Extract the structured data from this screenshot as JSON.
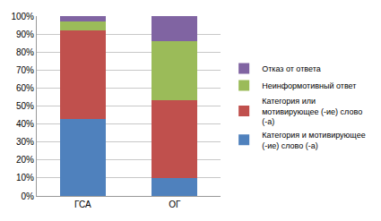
{
  "chart_data": {
    "type": "bar",
    "stacked": true,
    "grid": true,
    "legend": "right",
    "categories": [
      "ГСА",
      "ОГ"
    ],
    "series": [
      {
        "name": "Категория и мотивирующее (-ие) слово (-а)",
        "color": "#4f81bd",
        "values": [
          43,
          10
        ]
      },
      {
        "name": "Категория или мотивирующее (-ие) слово (-а)",
        "color": "#c0504d",
        "values": [
          49,
          43
        ]
      },
      {
        "name": "Неинформотивный ответ",
        "color": "#9bbb59",
        "values": [
          5,
          33
        ]
      },
      {
        "name": "Отказ от ответа",
        "color": "#8064a2",
        "values": [
          3,
          14
        ]
      }
    ],
    "ylim": [
      0,
      100
    ],
    "yticks": [
      {
        "value": 0,
        "label": "0%"
      },
      {
        "value": 10,
        "label": "10%"
      },
      {
        "value": 20,
        "label": "20%"
      },
      {
        "value": 30,
        "label": "30%"
      },
      {
        "value": 40,
        "label": "40%"
      },
      {
        "value": 50,
        "label": "50%"
      },
      {
        "value": 60,
        "label": "60%"
      },
      {
        "value": 70,
        "label": "70%"
      },
      {
        "value": 80,
        "label": "80%"
      },
      {
        "value": 90,
        "label": "90%"
      },
      {
        "value": 100,
        "label": "100%"
      }
    ]
  }
}
